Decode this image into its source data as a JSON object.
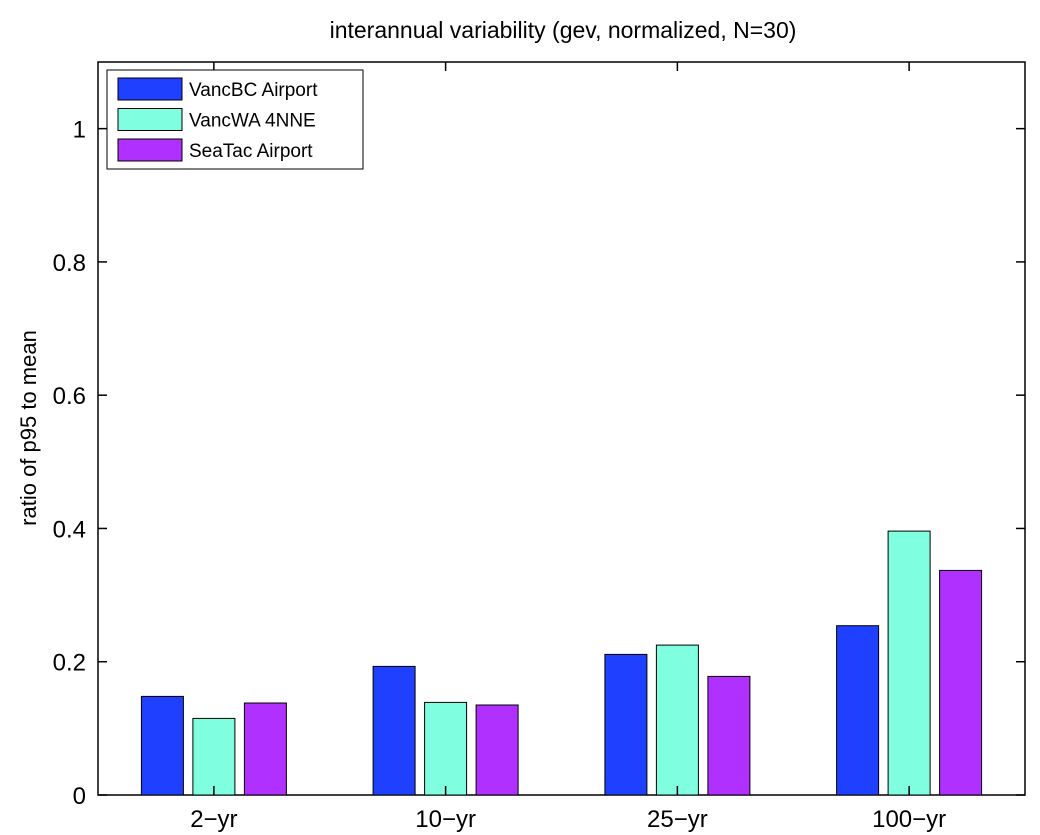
{
  "chart_data": {
    "type": "bar",
    "title": "interannual variability (gev, normalized, N=30)",
    "xlabel": "",
    "ylabel": "ratio of p95 to mean",
    "categories": [
      "2−yr",
      "10−yr",
      "25−yr",
      "100−yr"
    ],
    "ylim": [
      0,
      1.1
    ],
    "yticks": [
      0,
      0.2,
      0.4,
      0.6,
      0.8,
      1
    ],
    "ytick_labels": [
      "0",
      "0.2",
      "0.4",
      "0.6",
      "0.8",
      "1"
    ],
    "grid": false,
    "legend_position": "top-left",
    "series": [
      {
        "name": "VancBC Airport",
        "color": "#2040ff",
        "values": [
          0.148,
          0.193,
          0.211,
          0.254
        ]
      },
      {
        "name": "VancWA 4NNE",
        "color": "#7fffdf",
        "values": [
          0.115,
          0.139,
          0.225,
          0.396
        ]
      },
      {
        "name": "SeaTac Airport",
        "color": "#b030ff",
        "values": [
          0.138,
          0.135,
          0.178,
          0.337
        ]
      }
    ]
  }
}
